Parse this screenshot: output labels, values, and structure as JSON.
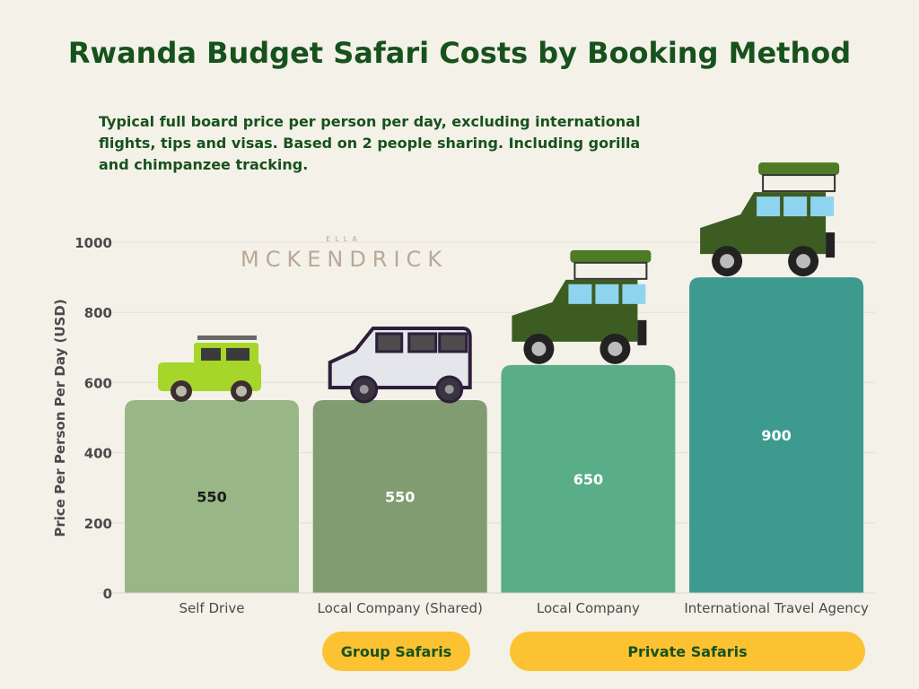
{
  "chart_data": {
    "type": "bar",
    "title": "Rwanda Budget Safari Costs by Booking Method",
    "subtitle": "Typical full board price per person per day, excluding international flights, tips and visas. Based on 2 people sharing. Including gorilla and chimpanzee tracking.",
    "ylabel": "Price Per Person Per Day (USD)",
    "xlabel": "",
    "ylim": [
      0,
      1000
    ],
    "yticks": [
      0,
      200,
      400,
      600,
      800,
      1000
    ],
    "grid": true,
    "categories": [
      "Self Drive",
      "Local Company (Shared)",
      "Local Company",
      "International Travel Agency"
    ],
    "values": [
      550,
      550,
      650,
      900
    ],
    "colors": [
      "#99b686",
      "#809c70",
      "#59ae87",
      "#3d9a8f"
    ],
    "label_colors": [
      "#1a1a1a",
      "#ffffff",
      "#ffffff",
      "#ffffff"
    ],
    "groups": [
      {
        "label": "Group Safaris",
        "categories": [
          "Local Company (Shared)"
        ]
      },
      {
        "label": "Private Safaris",
        "categories": [
          "Local Company",
          "International Travel Agency"
        ]
      }
    ],
    "vehicles": [
      "green-jeep-icon",
      "white-van-icon",
      "safari-truck-icon",
      "safari-truck-icon"
    ]
  },
  "logo": {
    "top": "ELLA",
    "name": "MCKENDRICK"
  },
  "colors": {
    "background": "#f4f1e9",
    "title": "#17521d",
    "pill": "#fdc231"
  }
}
